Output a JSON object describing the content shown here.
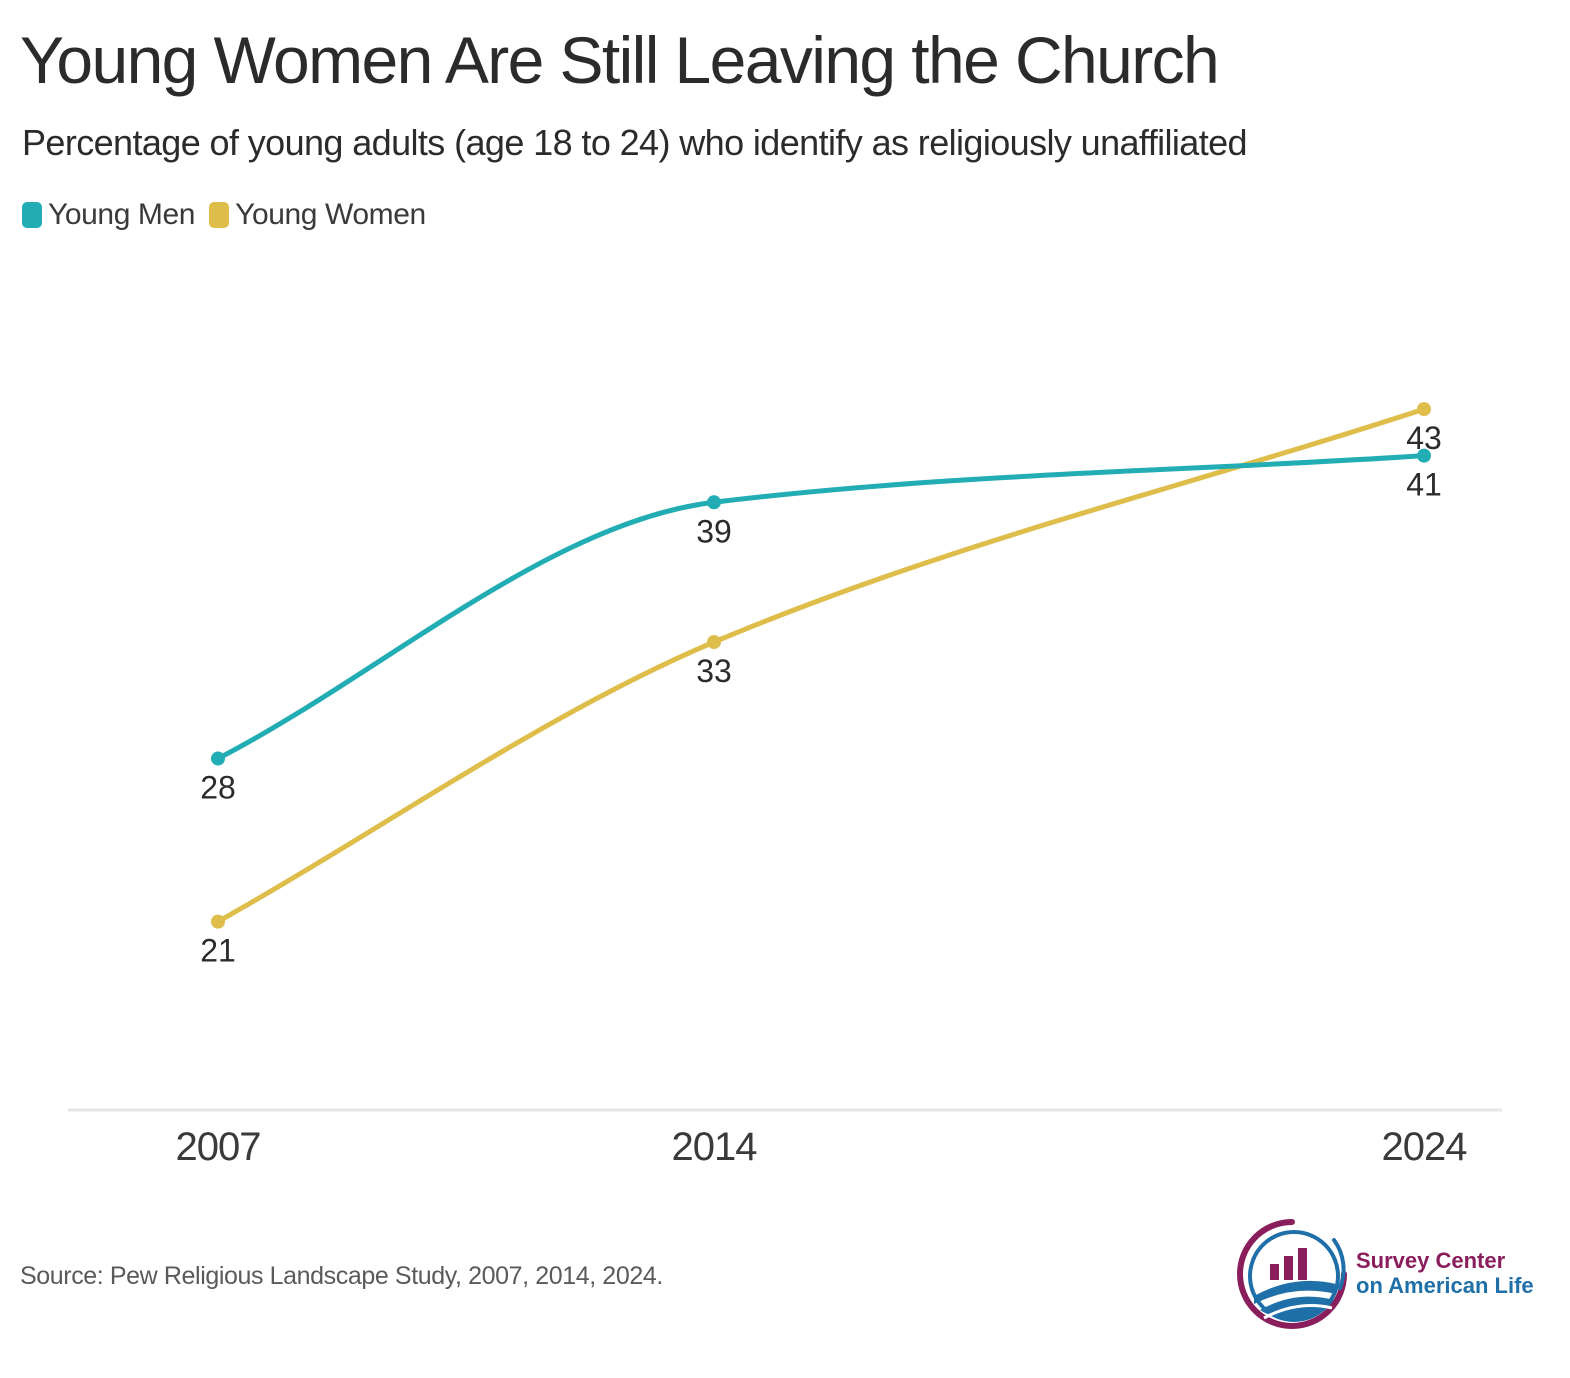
{
  "title": "Young Women Are Still Leaving the Church",
  "subtitle": "Percentage of young adults (age 18 to 24) who identify as religiously unaffiliated",
  "source": "Source: Pew Religious Landscape Study, 2007, 2014, 2024.",
  "logo": {
    "line1": "Survey Center",
    "line2": "on American Life",
    "colors": {
      "magenta": "#8a1d5c",
      "blue": "#1f6fa8"
    }
  },
  "chart_data": {
    "type": "line",
    "x": [
      "2007",
      "2014",
      "2024"
    ],
    "x_values": [
      2007,
      2014,
      2024
    ],
    "ylim": [
      13,
      50
    ],
    "grid": false,
    "legend_position": "top-left",
    "series": [
      {
        "name": "Young Men",
        "color": "#22adb5",
        "values": [
          28,
          39,
          41
        ],
        "label_position": "below"
      },
      {
        "name": "Young Women",
        "color": "#dfbd4a",
        "values": [
          21,
          33,
          43
        ],
        "label_position": "below"
      }
    ]
  }
}
